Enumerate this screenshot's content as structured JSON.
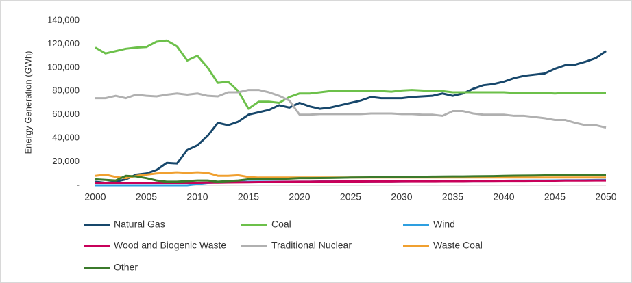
{
  "chart_data": {
    "type": "line",
    "ylabel": "Energy Generation (GWh)",
    "x": [
      2000,
      2001,
      2002,
      2003,
      2004,
      2005,
      2006,
      2007,
      2008,
      2009,
      2010,
      2011,
      2012,
      2013,
      2014,
      2015,
      2016,
      2017,
      2018,
      2019,
      2020,
      2021,
      2022,
      2023,
      2024,
      2025,
      2026,
      2027,
      2028,
      2029,
      2030,
      2031,
      2032,
      2033,
      2034,
      2035,
      2036,
      2037,
      2038,
      2039,
      2040,
      2041,
      2042,
      2043,
      2044,
      2045,
      2046,
      2047,
      2048,
      2049,
      2050
    ],
    "xlim": [
      2000,
      2050
    ],
    "xticks": [
      2000,
      2005,
      2010,
      2015,
      2020,
      2025,
      2030,
      2035,
      2040,
      2045,
      2050
    ],
    "ylim": [
      0,
      140000
    ],
    "yticks": [
      {
        "value": 0,
        "label": "-"
      },
      {
        "value": 20000,
        "label": "20,000"
      },
      {
        "value": 40000,
        "label": "40,000"
      },
      {
        "value": 60000,
        "label": "60,000"
      },
      {
        "value": 80000,
        "label": "80,000"
      },
      {
        "value": 100000,
        "label": "100,000"
      },
      {
        "value": 120000,
        "label": "120,000"
      },
      {
        "value": 140000,
        "label": "140,000"
      }
    ],
    "grid": false,
    "legend": "bottom",
    "series": [
      {
        "name": "Natural Gas",
        "color": "#17476b",
        "values": [
          3000,
          2000,
          3000,
          5000,
          9000,
          10000,
          13000,
          19000,
          18500,
          30000,
          34000,
          42000,
          53000,
          51000,
          54000,
          60000,
          62000,
          64000,
          68000,
          66000,
          70000,
          67000,
          65000,
          66000,
          68000,
          70000,
          72000,
          75000,
          74000,
          74000,
          74000,
          75000,
          75500,
          76000,
          78000,
          76000,
          78000,
          82000,
          85000,
          86000,
          88000,
          91000,
          93000,
          94000,
          95000,
          99000,
          102000,
          102500,
          105000,
          108000,
          114000
        ]
      },
      {
        "name": "Coal",
        "color": "#6cc04a",
        "values": [
          117000,
          112000,
          114000,
          116000,
          117000,
          117500,
          122000,
          123000,
          118000,
          106000,
          110000,
          100000,
          87000,
          88000,
          80000,
          65000,
          71000,
          71000,
          70000,
          75000,
          78000,
          78000,
          79000,
          80000,
          80000,
          80000,
          80000,
          80000,
          80000,
          79500,
          80500,
          81000,
          80500,
          80000,
          80000,
          79000,
          79000,
          79000,
          79000,
          79000,
          79000,
          78500,
          78500,
          78500,
          78500,
          78000,
          78500,
          78500,
          78500,
          78500,
          78500
        ]
      },
      {
        "name": "Wind",
        "color": "#2e9fe0",
        "values": [
          0,
          0,
          0,
          0,
          0,
          0,
          0,
          0,
          0,
          0,
          1000,
          2000,
          2500,
          2500,
          2800,
          3000,
          3000,
          3000,
          3000,
          3000,
          3000,
          3000,
          3200,
          3200,
          3200,
          3300,
          3300,
          3300,
          3400,
          3400,
          3400,
          3500,
          3500,
          3500,
          3600,
          3600,
          3600,
          3700,
          3700,
          3800,
          3800,
          3900,
          3900,
          4000,
          4000,
          4100,
          4200,
          4200,
          4300,
          4400,
          4500
        ]
      },
      {
        "name": "Wood and Biogenic Waste",
        "color": "#c8005a",
        "values": [
          2000,
          2000,
          2000,
          2000,
          2000,
          2000,
          2000,
          2000,
          2000,
          2000,
          2000,
          2200,
          2200,
          2300,
          2400,
          2500,
          2600,
          2700,
          2800,
          2900,
          3000,
          3000,
          3100,
          3100,
          3200,
          3200,
          3200,
          3300,
          3300,
          3300,
          3400,
          3400,
          3400,
          3400,
          3500,
          3500,
          3500,
          3600,
          3600,
          3600,
          3700,
          3700,
          3700,
          3800,
          3800,
          3800,
          3900,
          3900,
          3900,
          4000,
          4000
        ]
      },
      {
        "name": "Traditional Nuclear",
        "color": "#b0b0b0",
        "values": [
          74000,
          74000,
          76000,
          74000,
          77000,
          76000,
          75500,
          77000,
          78000,
          77000,
          78000,
          76000,
          75500,
          79000,
          79000,
          81000,
          81000,
          79000,
          76000,
          72000,
          60000,
          60000,
          60500,
          60500,
          60500,
          60500,
          60500,
          61000,
          61000,
          61000,
          60500,
          60500,
          60000,
          60000,
          59000,
          63000,
          63000,
          61000,
          60000,
          60000,
          60000,
          59000,
          59000,
          58000,
          57000,
          55500,
          55500,
          53000,
          51000,
          51000,
          49000
        ]
      },
      {
        "name": "Waste Coal",
        "color": "#f0a030",
        "values": [
          8000,
          9000,
          7000,
          6000,
          8000,
          9000,
          10000,
          10500,
          11000,
          10500,
          11000,
          10500,
          8000,
          8000,
          8500,
          7000,
          6500,
          6500,
          6500,
          6500,
          6500,
          6500,
          6500,
          6500,
          6500,
          6500,
          6500,
          6500,
          6500,
          6500,
          6500,
          6500,
          6500,
          6500,
          6500,
          6500,
          6500,
          6500,
          6500,
          6500,
          6500,
          6500,
          6500,
          6500,
          6500,
          6500,
          6500,
          6500,
          6500,
          6500,
          6500
        ]
      },
      {
        "name": "Other",
        "color": "#3b7a2b",
        "values": [
          5000,
          4500,
          4000,
          8000,
          7500,
          6000,
          4000,
          3000,
          3000,
          3500,
          4000,
          4000,
          3000,
          3500,
          4000,
          5000,
          5000,
          5200,
          5400,
          5600,
          6000,
          6000,
          6100,
          6200,
          6300,
          6500,
          6600,
          6700,
          6800,
          6900,
          7000,
          7100,
          7200,
          7300,
          7400,
          7500,
          7500,
          7600,
          7700,
          7800,
          8000,
          8100,
          8200,
          8300,
          8400,
          8500,
          8600,
          8700,
          8800,
          8900,
          9000
        ]
      }
    ]
  }
}
